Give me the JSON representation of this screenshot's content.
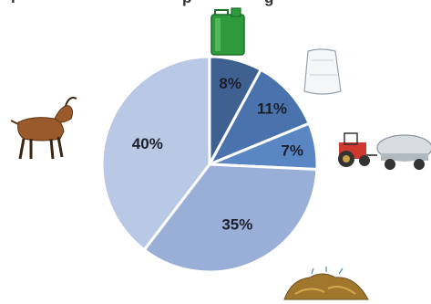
{
  "chart_data": {
    "type": "pie",
    "title": "",
    "start_angle_deg": 0,
    "direction": "clockwise",
    "slices": [
      {
        "label": "8%",
        "value": 8,
        "color": "#3e6192",
        "icon": "fuel-canister-icon"
      },
      {
        "label": "11%",
        "value": 11,
        "color": "#4a73ad",
        "icon": "fertilizer-sack-icon"
      },
      {
        "label": "7%",
        "value": 7,
        "color": "#5b86c4",
        "icon": "tractor-tanker-icon"
      },
      {
        "label": "35%",
        "value": 35,
        "color": "#9aafd8",
        "icon": "manure-heap-icon"
      },
      {
        "label": "40%",
        "value": 40,
        "color": "#b9c8e4",
        "icon": "goat-icon"
      }
    ]
  }
}
